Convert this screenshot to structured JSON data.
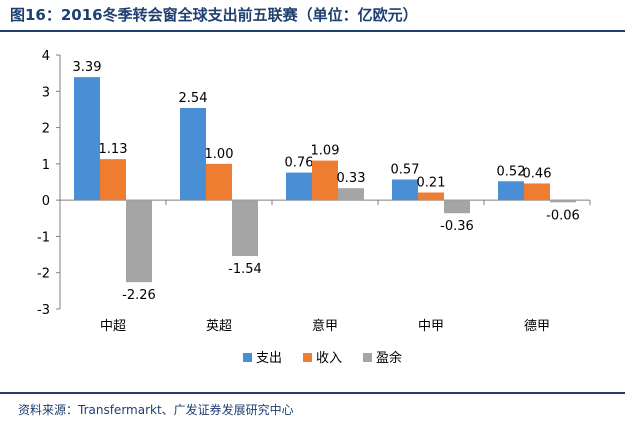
{
  "title": "图16：2016冬季转会窗全球支出前五联赛（单位：亿欧元）",
  "source": "资料来源：Transfermarkt、广发证券发展研究中心",
  "colors": {
    "支出": "#4a8fd6",
    "收入": "#ee7d31",
    "盈余": "#a5a5a5"
  },
  "chart_data": {
    "type": "bar",
    "categories": [
      "中超",
      "英超",
      "意甲",
      "中甲",
      "德甲"
    ],
    "series": [
      {
        "name": "支出",
        "values": [
          3.39,
          2.54,
          0.76,
          0.57,
          0.52
        ]
      },
      {
        "name": "收入",
        "values": [
          1.13,
          1.0,
          1.09,
          0.21,
          0.46
        ]
      },
      {
        "name": "盈余",
        "values": [
          -2.26,
          -1.54,
          0.33,
          -0.36,
          -0.06
        ]
      }
    ],
    "data_labels": [
      [
        "3.39",
        "2.54",
        "0.76",
        "0.57",
        "0.52"
      ],
      [
        "1.13",
        "1.00",
        "1.09",
        "0.21",
        "0.46"
      ],
      [
        "-2.26",
        "-1.54",
        "0.33",
        "-0.36",
        "-0.06"
      ]
    ],
    "ylim": [
      -3,
      4
    ],
    "yticks": [
      -3,
      -2,
      -1,
      0,
      1,
      2,
      3,
      4
    ],
    "legend": "bottom",
    "grid": false
  }
}
